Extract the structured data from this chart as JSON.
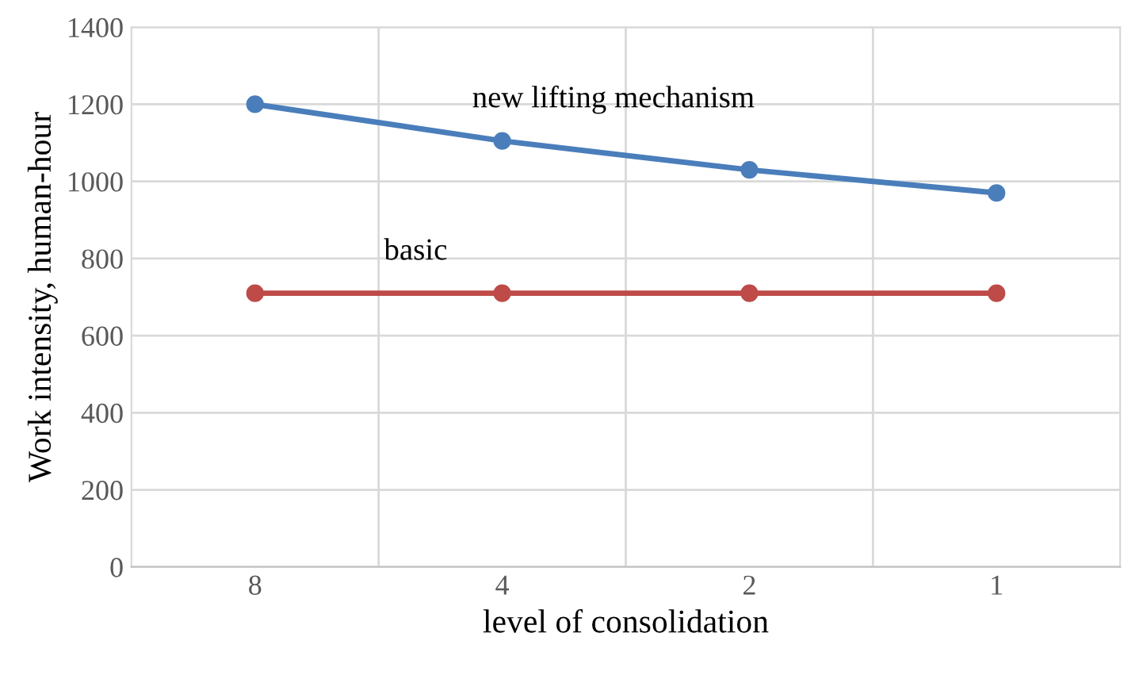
{
  "chart_data": {
    "type": "line",
    "xlabel": "level of consolidation",
    "ylabel": "Work intensity, human-hour",
    "categories": [
      "8",
      "4",
      "2",
      "1"
    ],
    "series": [
      {
        "name": "new lifting mechanism",
        "color": "#4a7ebb",
        "values": [
          1200,
          1105,
          1030,
          970
        ]
      },
      {
        "name": "basic",
        "color": "#be4b48",
        "values": [
          710,
          710,
          710,
          710
        ]
      }
    ],
    "ylim": [
      0,
      1400
    ],
    "yticks": [
      0,
      200,
      400,
      600,
      800,
      1000,
      1200,
      1400
    ],
    "grid": true,
    "legend": false,
    "marker": "circle",
    "line_style": "solid"
  }
}
